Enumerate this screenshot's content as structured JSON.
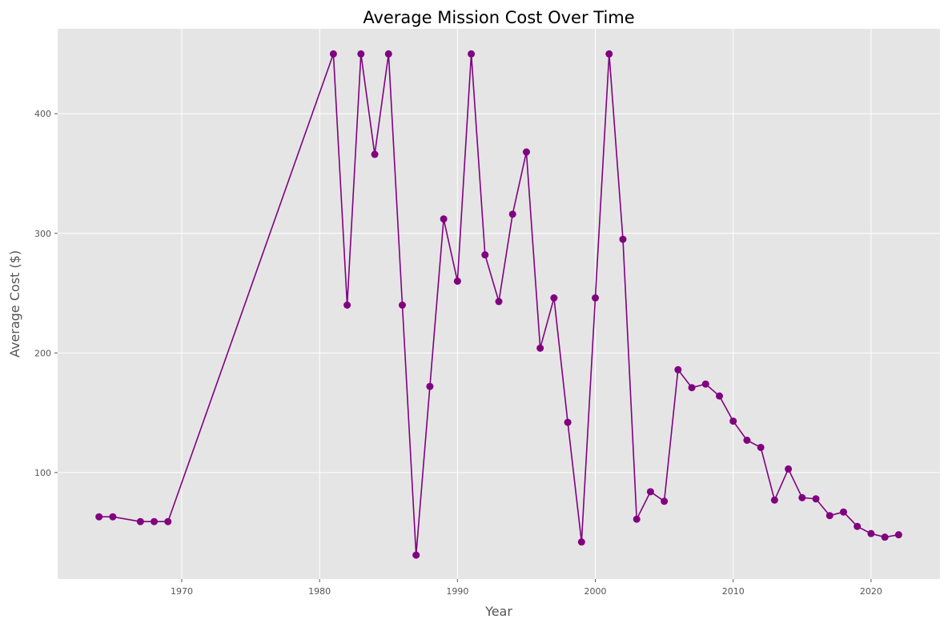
{
  "chart_data": {
    "type": "line",
    "title": "Average Mission Cost Over Time",
    "xlabel": "Year",
    "ylabel": "Average Cost ($)",
    "xlim": [
      1961,
      2025
    ],
    "ylim": [
      11,
      471
    ],
    "x_ticks": [
      1970,
      1980,
      1990,
      2000,
      2010,
      2020
    ],
    "y_ticks": [
      100,
      200,
      300,
      400
    ],
    "grid": true,
    "legend": "none",
    "colors": {
      "line": "#800080",
      "marker": "#800080",
      "background": "#e5e5e5",
      "grid": "#ffffff"
    },
    "series": [
      {
        "x": [
          1964,
          1965,
          1967,
          1968,
          1969,
          1981,
          1982,
          1983,
          1984,
          1985,
          1986,
          1987,
          1988,
          1989,
          1990,
          1991,
          1992,
          1993,
          1994,
          1995,
          1996,
          1997,
          1998,
          1999,
          2000,
          2001,
          2002,
          2003,
          2004,
          2005,
          2006,
          2007,
          2008,
          2009,
          2010,
          2011,
          2012,
          2013,
          2014,
          2015,
          2016,
          2017,
          2018,
          2019,
          2020,
          2021,
          2022
        ],
        "values": [
          63,
          63,
          59,
          59,
          59,
          450,
          240,
          450,
          366,
          450,
          240,
          31,
          172,
          312,
          260,
          450,
          282,
          243,
          316,
          368,
          204,
          246,
          142,
          42,
          246,
          450,
          295,
          61,
          84,
          76,
          186,
          171,
          174,
          164,
          143,
          127,
          121,
          77,
          103,
          79,
          78,
          64,
          67,
          55,
          49,
          46,
          48
        ]
      }
    ]
  }
}
